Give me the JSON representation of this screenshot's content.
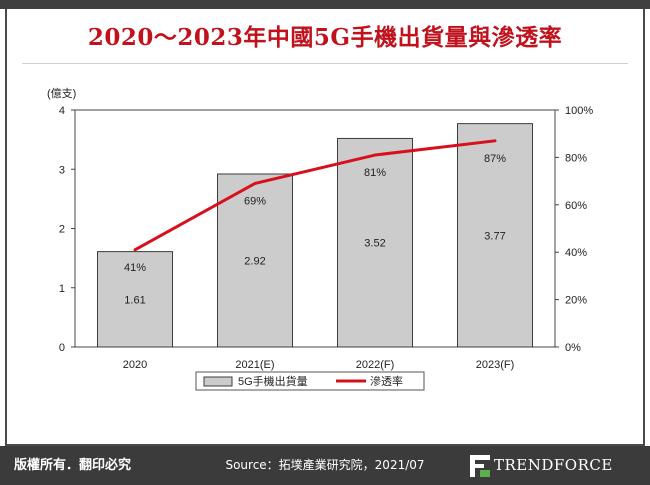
{
  "title": "2020～2023年中國5G手機出貨量與滲透率",
  "footer": {
    "rights": "版權所有．翻印必究",
    "source": "Source：拓墣產業研究院，2021/07",
    "brand": "TRENDFORCE"
  },
  "colors": {
    "title": "#c0111c",
    "bar_fill": "#cccccc",
    "line": "#d7101e",
    "footer_bg": "#3b3b3b"
  },
  "chart_data": {
    "type": "bar",
    "categories": [
      "2020",
      "2021(E)",
      "2022(F)",
      "2023(F)"
    ],
    "series": [
      {
        "name": "5G手機出貨量",
        "type": "bar",
        "axis": "left",
        "values": [
          1.61,
          2.92,
          3.52,
          3.77
        ],
        "labels": [
          "1.61",
          "2.92",
          "3.52",
          "3.77"
        ]
      },
      {
        "name": "滲透率",
        "type": "line",
        "axis": "right",
        "values": [
          41,
          69,
          81,
          87
        ],
        "labels": [
          "41%",
          "69%",
          "81%",
          "87%"
        ]
      }
    ],
    "ylabel": "(億支)",
    "ylim": [
      0,
      4
    ],
    "yticks": [
      "0",
      "1",
      "2",
      "3",
      "4"
    ],
    "y2lim": [
      0,
      100
    ],
    "y2ticks": [
      "0%",
      "20%",
      "40%",
      "60%",
      "80%",
      "100%"
    ],
    "legend_position": "bottom",
    "grid": false
  }
}
